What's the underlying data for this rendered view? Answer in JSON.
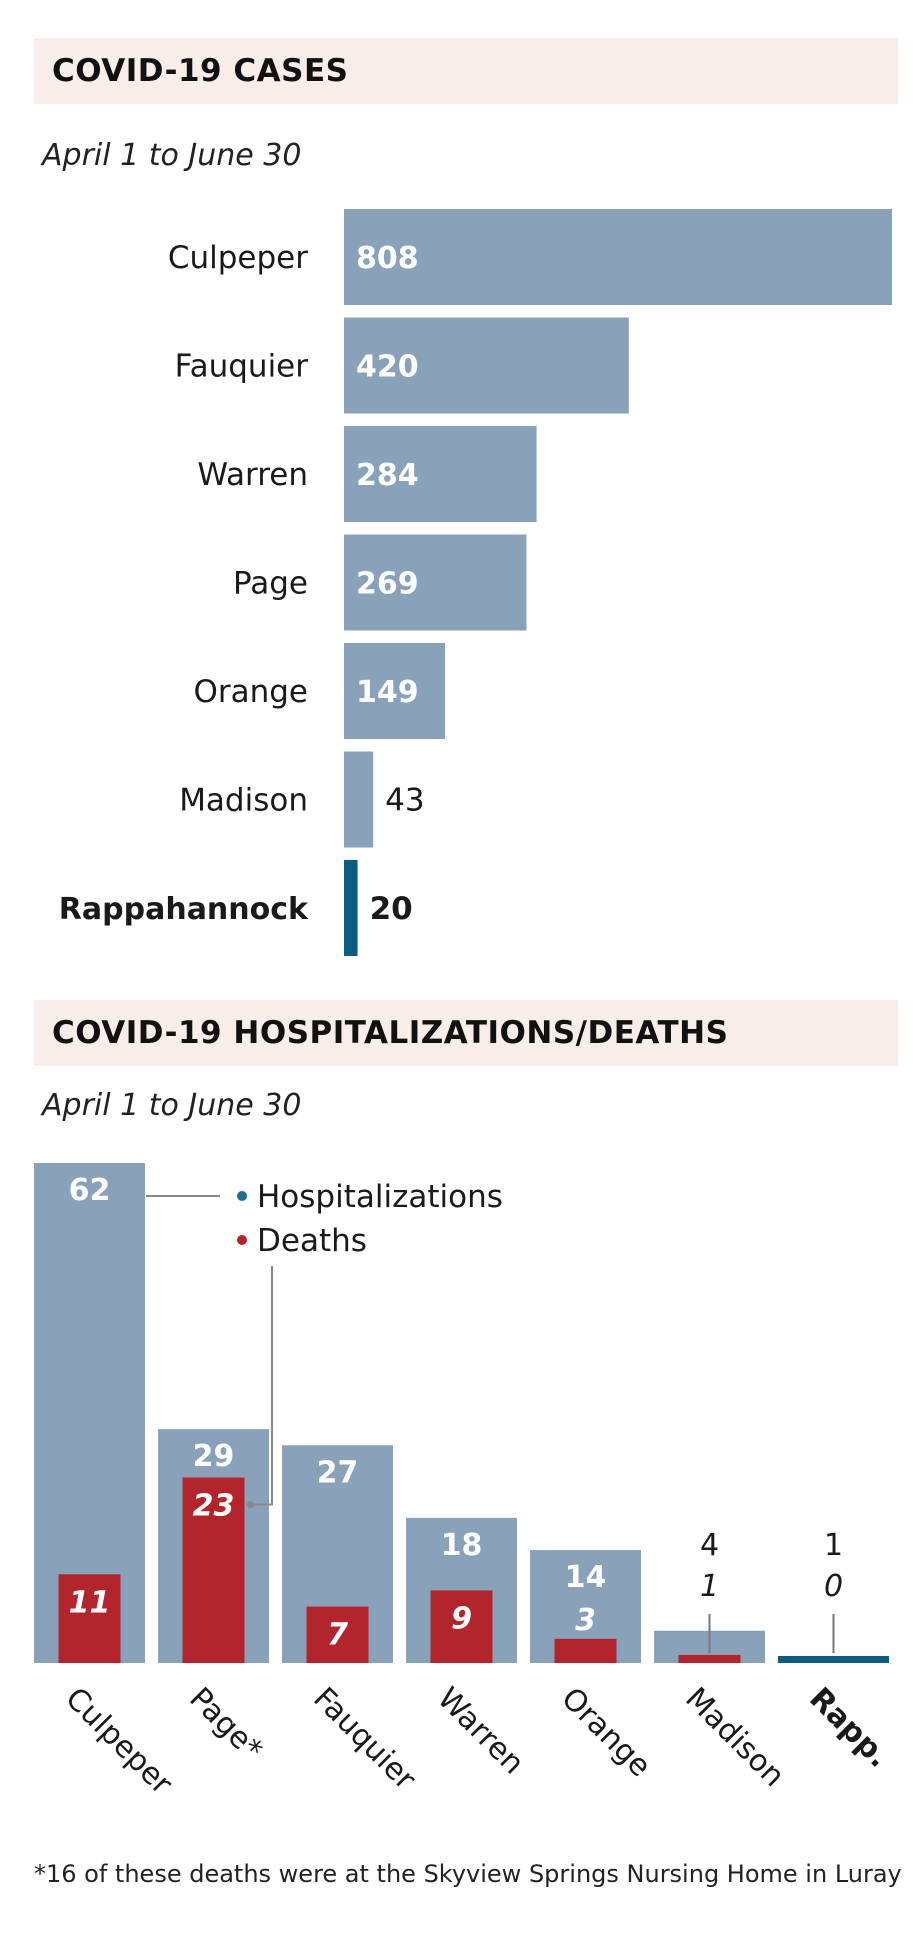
{
  "chart_data": [
    {
      "type": "bar",
      "orientation": "horizontal",
      "title": "COVID-19 CASES",
      "subtitle": "April 1 to June 30",
      "categories": [
        "Culpeper",
        "Fauquier",
        "Warren",
        "Page",
        "Orange",
        "Madison",
        "Rappahannock"
      ],
      "values": [
        808,
        420,
        284,
        269,
        149,
        43,
        20
      ],
      "highlight": "Rappahannock",
      "xlim": [
        0,
        808
      ],
      "colors": {
        "bar": "#8aa2b9",
        "highlight": "#0c5d80"
      }
    },
    {
      "type": "bar",
      "orientation": "vertical",
      "title": "COVID-19 HOSPITALIZATIONS/DEATHS",
      "subtitle": "April 1 to June 30",
      "categories": [
        "Culpeper",
        "Page*",
        "Fauquier",
        "Warren",
        "Orange",
        "Madison",
        "Rapp."
      ],
      "highlight": "Rapp.",
      "series": [
        {
          "name": "Hospitalizations",
          "values": [
            62,
            29,
            27,
            18,
            14,
            4,
            1
          ],
          "color": "#8aa2b9"
        },
        {
          "name": "Deaths",
          "values": [
            11,
            23,
            7,
            9,
            3,
            1,
            0
          ],
          "color": "#b3252d"
        }
      ],
      "ylim": [
        0,
        62
      ],
      "legend": [
        "Hospitalizations",
        "Deaths"
      ],
      "legend_dot_colors": {
        "hospitalizations": "#1f6f8b",
        "deaths": "#b3252d"
      },
      "highlight_color": "#0c5d80",
      "footnote": "*16 of these deaths were at the Skyview Springs Nursing Home in Luray"
    }
  ]
}
